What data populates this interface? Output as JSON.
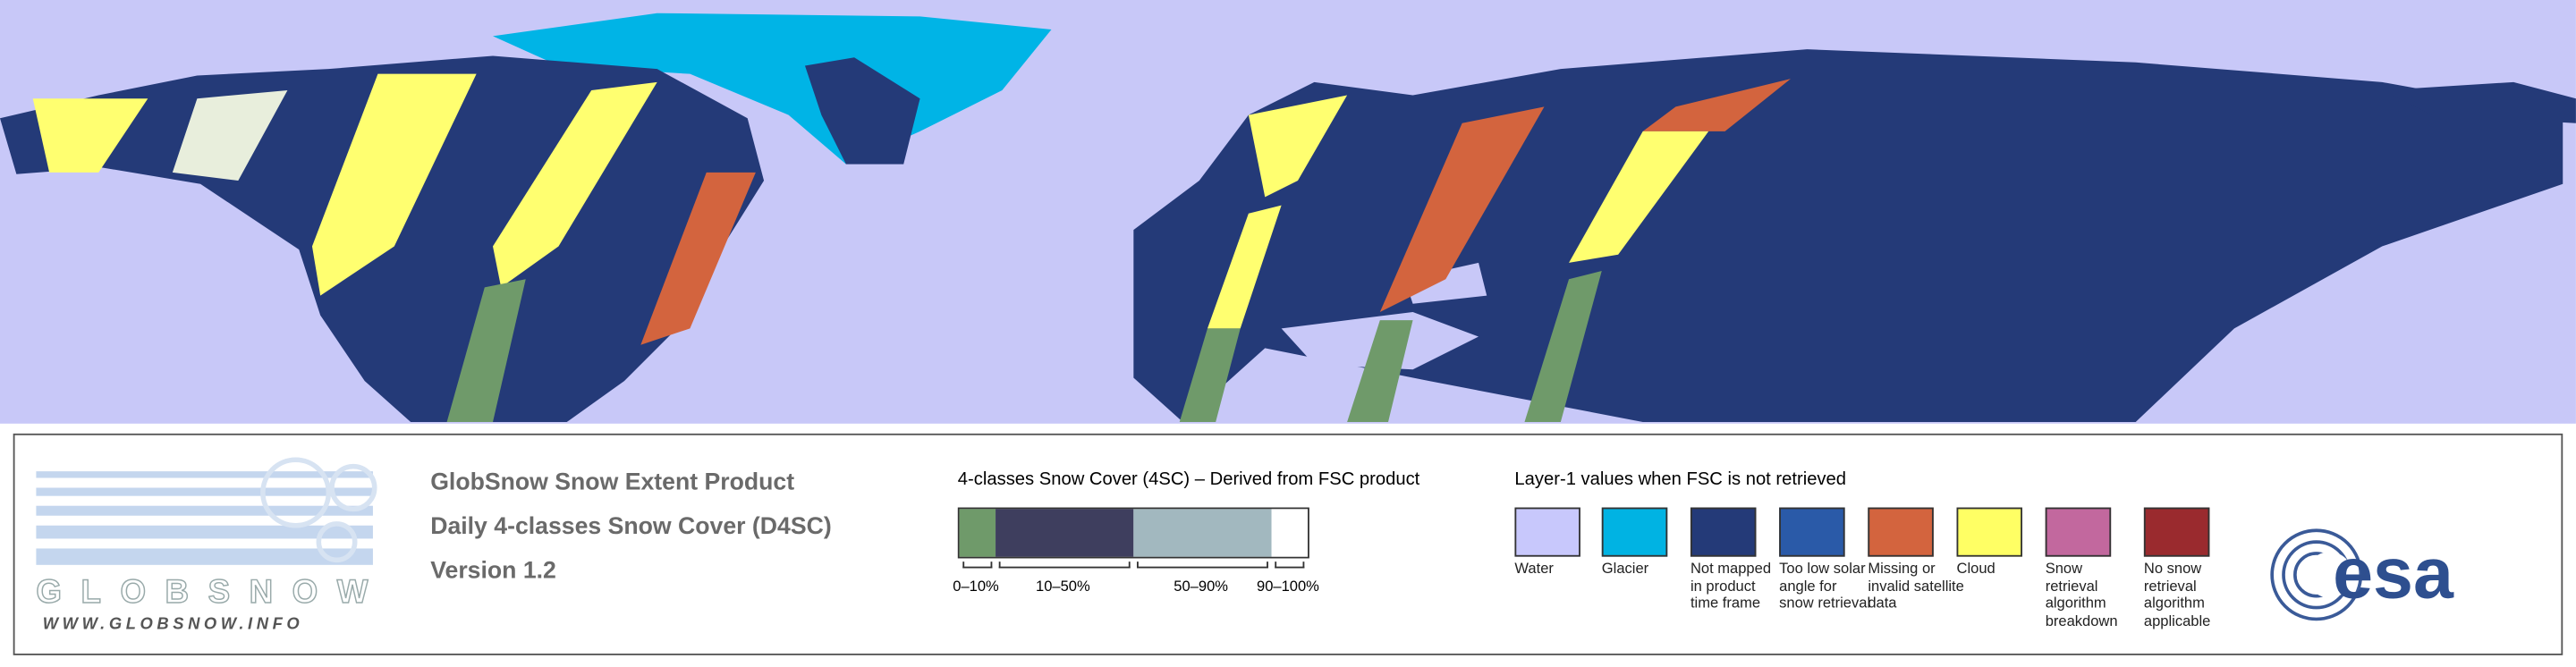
{
  "logo": {
    "name": "GLOBSNOW",
    "url": "WWW.GLOBSNOW.INFO"
  },
  "product": {
    "lines": [
      "GlobSnow Snow Extent Product",
      "Daily 4-classes Snow Cover (D4SC)",
      "Version 1.2"
    ]
  },
  "snow_cover_legend": {
    "title": "4-classes Snow Cover (4SC) – Derived from FSC product",
    "classes": [
      {
        "label": "0–10%",
        "color": "#6f9a6a"
      },
      {
        "label": "10–50%",
        "color": "#3e3e5e"
      },
      {
        "label": "50–90%",
        "color": "#a2b8bf"
      },
      {
        "label": "90–100%",
        "color": "#ffffff"
      }
    ]
  },
  "layer1_legend": {
    "title": "Layer-1 values when FSC is not retrieved",
    "items": [
      {
        "label": "Water",
        "color": "#c8c8fc"
      },
      {
        "label": "Glacier",
        "color": "#00b3e3"
      },
      {
        "label": "Not mapped in product time frame",
        "color": "#243a78"
      },
      {
        "label": "Too low solar angle for snow retrieval",
        "color": "#2a5aa8"
      },
      {
        "label": "Missing or invalid satellite data",
        "color": "#d3643e"
      },
      {
        "label": "Cloud",
        "color": "#ffff64"
      },
      {
        "label": "Snow retrieval algorithm breakdown",
        "color": "#c2689e"
      },
      {
        "label": "No snow retrieval algorithm applicable",
        "color": "#9a2a2e"
      }
    ]
  },
  "agency_logo": "esa"
}
